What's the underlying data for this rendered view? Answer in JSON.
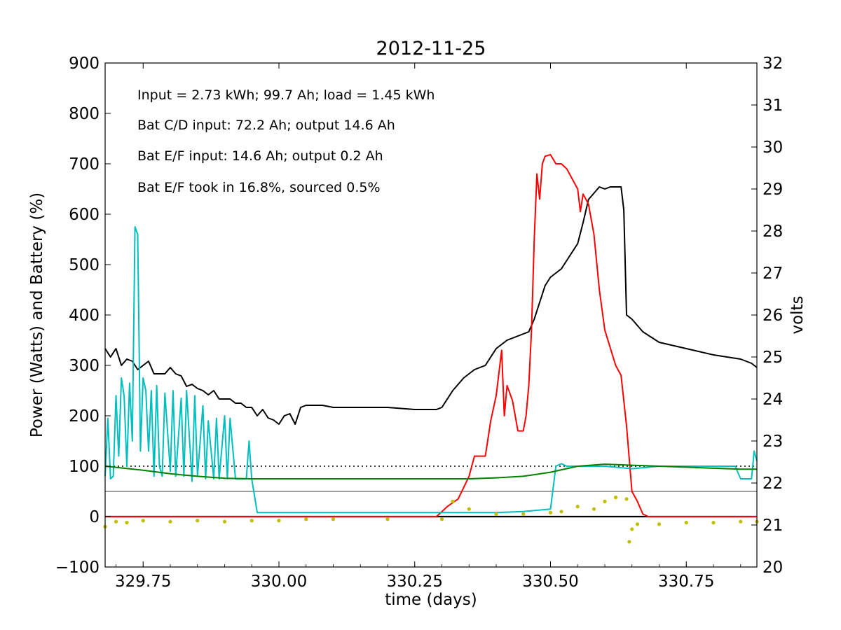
{
  "chart_data": {
    "type": "line",
    "title": "2012-11-25",
    "xlabel": "time (days)",
    "ylabel": "Power (Watts) and Battery (%)",
    "y2label": "volts",
    "xlim": [
      329.68,
      330.88
    ],
    "ylim": [
      -100,
      900
    ],
    "y2lim": [
      20,
      32
    ],
    "x_ticks": [
      329.75,
      330.0,
      330.25,
      330.5,
      330.75
    ],
    "x_tick_labels": [
      "329.75",
      "330.00",
      "330.25",
      "330.50",
      "330.75"
    ],
    "y_ticks": [
      -100,
      0,
      100,
      200,
      300,
      400,
      500,
      600,
      700,
      800,
      900
    ],
    "y_tick_labels": [
      "−100",
      "0",
      "100",
      "200",
      "300",
      "400",
      "500",
      "600",
      "700",
      "800",
      "900"
    ],
    "y2_ticks": [
      20,
      21,
      22,
      23,
      24,
      25,
      26,
      27,
      28,
      29,
      30,
      31,
      32
    ],
    "y2_tick_labels": [
      "20",
      "21",
      "22",
      "23",
      "24",
      "25",
      "26",
      "27",
      "28",
      "29",
      "30",
      "31",
      "32"
    ],
    "grid": false,
    "annotations": [
      "Input = 2.73 kWh; 99.7 Ah; load = 1.45 kWh",
      "Bat C/D input: 72.2 Ah; output 14.6 Ah",
      "Bat E/F input: 14.6 Ah; output 0.2 Ah",
      "Bat E/F took in 16.8%, sourced 0.5%"
    ],
    "reference_lines": [
      {
        "y": 100,
        "style": "dotted",
        "color": "#000000"
      },
      {
        "y": 50,
        "style": "thin",
        "color": "#000000"
      },
      {
        "y": 0,
        "style": "thick",
        "color": "#000000"
      }
    ],
    "series": [
      {
        "axis": "right",
        "color": "#000000",
        "style": "line",
        "x": [
          329.68,
          329.69,
          329.7,
          329.71,
          329.72,
          329.73,
          329.74,
          329.75,
          329.76,
          329.77,
          329.78,
          329.79,
          329.8,
          329.81,
          329.82,
          329.83,
          329.84,
          329.85,
          329.86,
          329.87,
          329.88,
          329.89,
          329.9,
          329.91,
          329.92,
          329.93,
          329.94,
          329.95,
          329.96,
          329.97,
          329.98,
          329.99,
          330.0,
          330.01,
          330.02,
          330.03,
          330.04,
          330.05,
          330.06,
          330.08,
          330.1,
          330.15,
          330.2,
          330.25,
          330.29,
          330.3,
          330.32,
          330.34,
          330.36,
          330.38,
          330.4,
          330.42,
          330.44,
          330.46,
          330.47,
          330.48,
          330.49,
          330.5,
          330.52,
          330.54,
          330.55,
          330.56,
          330.57,
          330.58,
          330.59,
          330.6,
          330.61,
          330.62,
          330.63,
          330.635,
          330.64,
          330.65,
          330.67,
          330.7,
          330.75,
          330.8,
          330.85,
          330.87,
          330.88
        ],
        "values": [
          25.2,
          25.0,
          25.2,
          24.8,
          24.95,
          24.9,
          24.7,
          24.8,
          24.9,
          24.6,
          24.6,
          24.6,
          24.75,
          24.6,
          24.55,
          24.3,
          24.35,
          24.25,
          24.2,
          24.1,
          24.2,
          24.0,
          24.0,
          24.0,
          23.9,
          23.9,
          23.8,
          23.8,
          23.6,
          23.75,
          23.55,
          23.5,
          23.4,
          23.6,
          23.65,
          23.4,
          23.8,
          23.85,
          23.85,
          23.85,
          23.8,
          23.8,
          23.8,
          23.75,
          23.75,
          23.8,
          24.2,
          24.5,
          24.7,
          24.8,
          25.2,
          25.4,
          25.5,
          25.6,
          25.9,
          26.3,
          26.7,
          26.9,
          27.1,
          27.5,
          27.7,
          28.2,
          28.75,
          28.9,
          29.05,
          29.0,
          29.05,
          29.05,
          29.05,
          28.5,
          26.0,
          25.9,
          25.6,
          25.35,
          25.2,
          25.05,
          24.95,
          24.85,
          24.75
        ]
      },
      {
        "axis": "left",
        "color": "#ff0000",
        "style": "line",
        "x": [
          329.68,
          330.0,
          330.25,
          330.29,
          330.31,
          330.33,
          330.35,
          330.36,
          330.38,
          330.39,
          330.4,
          330.41,
          330.415,
          330.42,
          330.43,
          330.44,
          330.45,
          330.455,
          330.46,
          330.465,
          330.47,
          330.475,
          330.48,
          330.485,
          330.49,
          330.5,
          330.51,
          330.52,
          330.53,
          330.54,
          330.55,
          330.555,
          330.56,
          330.57,
          330.58,
          330.59,
          330.6,
          330.62,
          330.63,
          330.64,
          330.65,
          330.66,
          330.67,
          330.68,
          330.7,
          330.8,
          330.88
        ],
        "values": [
          0,
          0,
          0,
          0,
          20,
          35,
          80,
          120,
          120,
          190,
          240,
          330,
          200,
          260,
          230,
          170,
          170,
          200,
          260,
          370,
          550,
          680,
          630,
          700,
          715,
          718,
          700,
          700,
          690,
          670,
          650,
          605,
          640,
          620,
          560,
          450,
          370,
          300,
          280,
          180,
          50,
          30,
          5,
          0,
          0,
          0,
          0
        ]
      },
      {
        "axis": "left",
        "color": "#00bfbf",
        "style": "line",
        "x": [
          329.68,
          329.685,
          329.69,
          329.695,
          329.7,
          329.705,
          329.71,
          329.715,
          329.72,
          329.725,
          329.73,
          329.735,
          329.74,
          329.745,
          329.75,
          329.755,
          329.76,
          329.765,
          329.77,
          329.775,
          329.78,
          329.785,
          329.79,
          329.8,
          329.805,
          329.81,
          329.82,
          329.825,
          329.83,
          329.84,
          329.845,
          329.85,
          329.86,
          329.865,
          329.87,
          329.88,
          329.885,
          329.89,
          329.9,
          329.905,
          329.91,
          329.92,
          329.925,
          329.93,
          329.94,
          329.945,
          329.95,
          329.96,
          329.965,
          329.97,
          329.98,
          329.985,
          329.99,
          330.0,
          330.01,
          330.02,
          330.03,
          330.035,
          330.04,
          330.045,
          330.1,
          330.2,
          330.3,
          330.35,
          330.4,
          330.45,
          330.5,
          330.51,
          330.52,
          330.53,
          330.55,
          330.6,
          330.65,
          330.7,
          330.75,
          330.8,
          330.82,
          330.84,
          330.85,
          330.86,
          330.87,
          330.875,
          330.88
        ],
        "values": [
          80,
          195,
          75,
          80,
          240,
          120,
          275,
          240,
          100,
          265,
          150,
          575,
          560,
          130,
          275,
          250,
          130,
          250,
          80,
          260,
          100,
          80,
          245,
          90,
          250,
          80,
          235,
          80,
          250,
          70,
          240,
          80,
          220,
          75,
          190,
          75,
          195,
          75,
          200,
          75,
          195,
          75,
          75,
          75,
          75,
          150,
          75,
          8,
          8,
          8,
          8,
          8,
          8,
          8,
          8,
          8,
          8,
          8,
          8,
          8,
          8,
          8,
          8,
          8,
          8,
          10,
          15,
          100,
          105,
          100,
          100,
          100,
          95,
          100,
          100,
          100,
          100,
          100,
          75,
          75,
          75,
          130,
          110
        ]
      },
      {
        "axis": "left",
        "color": "#008000",
        "style": "line",
        "x": [
          329.68,
          329.75,
          329.8,
          329.85,
          329.9,
          329.95,
          330.0,
          330.1,
          330.2,
          330.3,
          330.35,
          330.4,
          330.45,
          330.5,
          330.55,
          330.6,
          330.65,
          330.7,
          330.75,
          330.8,
          330.85,
          330.88
        ],
        "values": [
          100,
          92,
          85,
          80,
          76,
          75,
          75,
          75,
          75,
          75,
          75,
          77,
          80,
          88,
          100,
          104,
          102,
          100,
          98,
          96,
          94,
          94
        ]
      },
      {
        "axis": "left",
        "color": "#bfbf00",
        "style": "dots",
        "x": [
          329.68,
          329.7,
          329.72,
          329.75,
          329.8,
          329.85,
          329.9,
          329.95,
          330.0,
          330.05,
          330.1,
          330.2,
          330.3,
          330.32,
          330.35,
          330.4,
          330.45,
          330.5,
          330.52,
          330.55,
          330.58,
          330.6,
          330.62,
          330.64,
          330.645,
          330.65,
          330.66,
          330.7,
          330.75,
          330.8,
          330.85,
          330.88
        ],
        "values": [
          -20,
          -10,
          -12,
          -8,
          -10,
          -8,
          -10,
          -8,
          -8,
          -5,
          -5,
          -5,
          -5,
          30,
          15,
          5,
          5,
          8,
          10,
          20,
          15,
          30,
          38,
          35,
          -50,
          -25,
          -15,
          -15,
          -12,
          -12,
          -10,
          -10
        ]
      }
    ]
  }
}
